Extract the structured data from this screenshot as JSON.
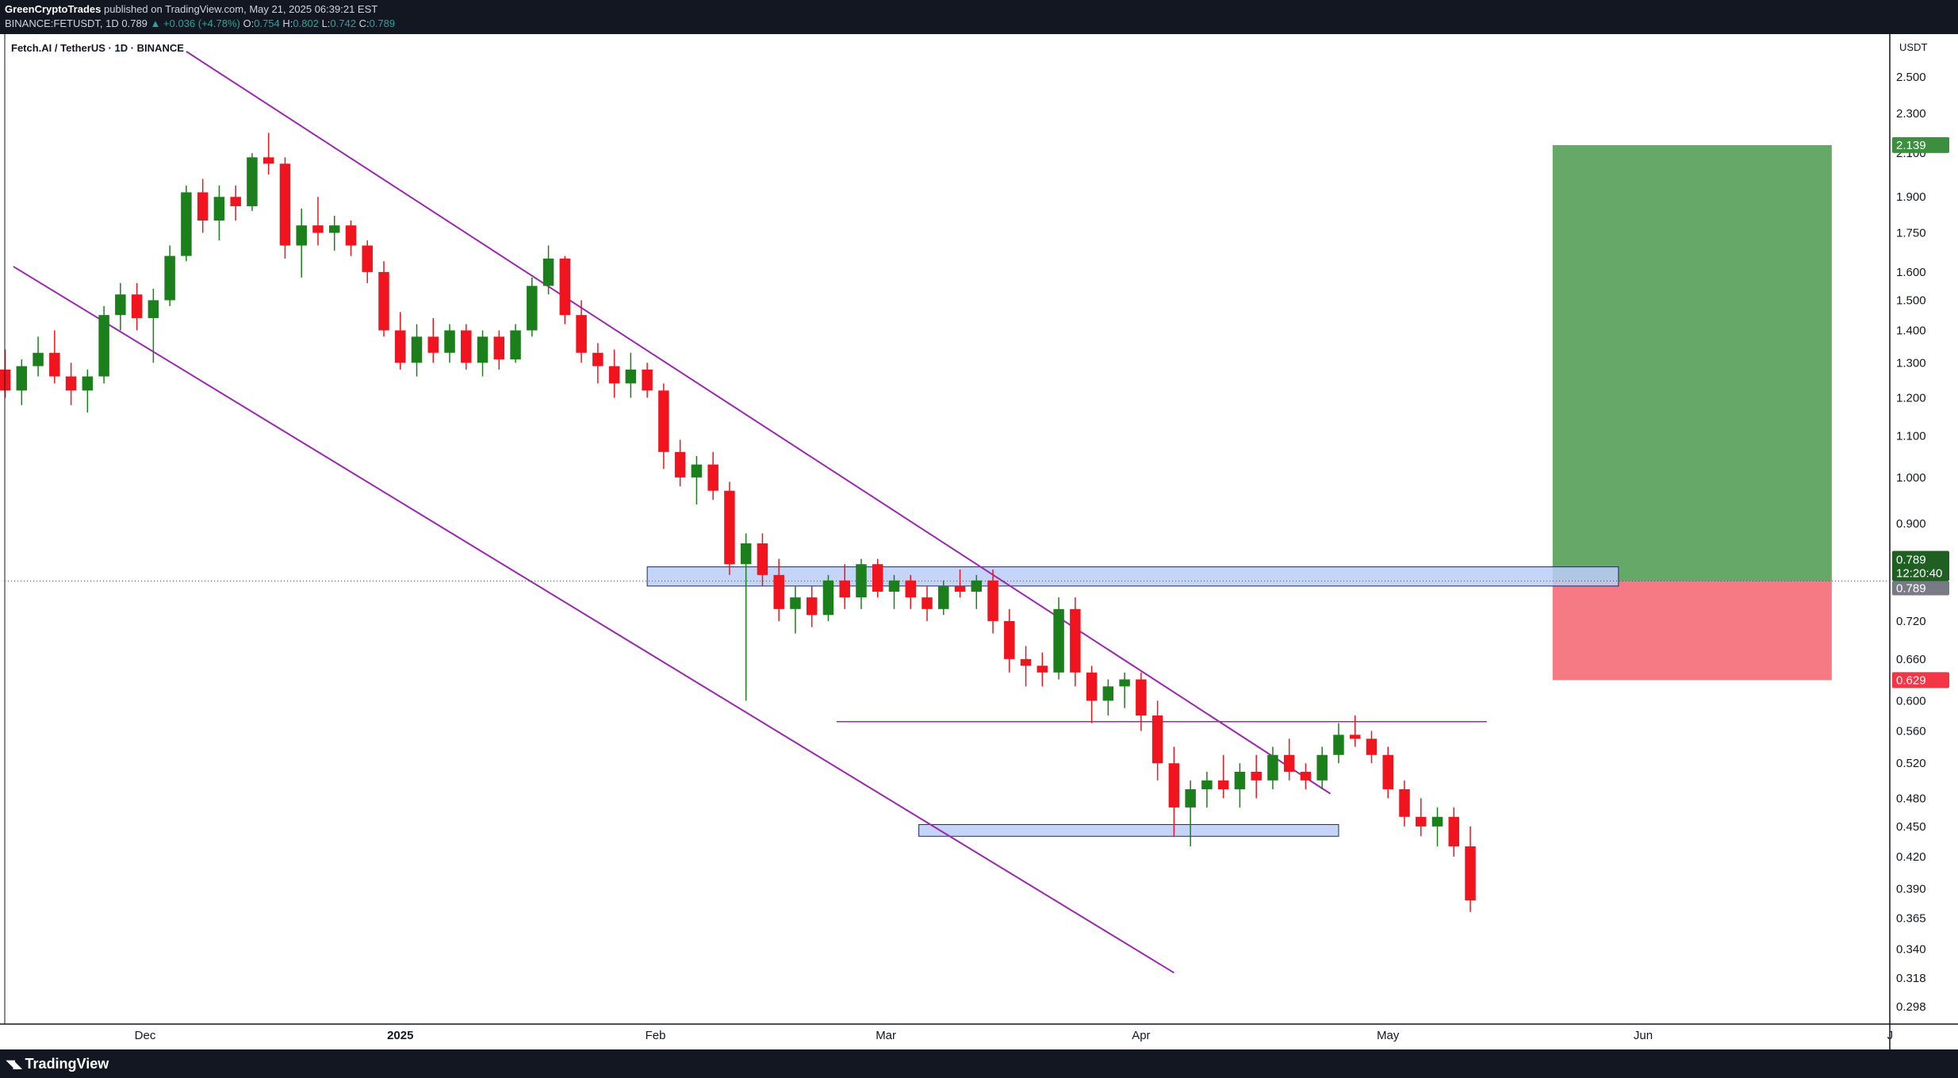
{
  "header": {
    "author": "GreenCryptoTrades",
    "published_text": "published on TradingView.com, May 21, 2025 06:39:21 EST",
    "symbol_line_prefix": "BINANCE:FETUSDT, 1D",
    "last": "0.789",
    "change": "▲ +0.036 (+4.78%)",
    "o_label": "O:",
    "o_value": "0.754",
    "h_label": "H:",
    "h_value": "0.802",
    "l_label": "L:",
    "l_value": "0.742",
    "c_label": "C:",
    "c_value": "0.789"
  },
  "chart_title": "Fetch.AI / TetherUS · 1D · BINANCE",
  "footer": {
    "brand": "TradingView",
    "logo_icon": "tradingview-logo-icon"
  },
  "colors": {
    "up": "#26a69a",
    "candle_up": "#1b7f1b",
    "candle_down": "#f0141e",
    "channel": "#9c27b0",
    "zone_fill": "#bbcdf8",
    "zone_stroke": "#1e2a5e",
    "target_fill": "#66a868",
    "stop_fill": "#f57a84",
    "last_price_bg": "#1f5f22"
  },
  "chart_data": {
    "type": "candlestick",
    "scale": "log",
    "currency_label": "USDT",
    "x_axis_labels": [
      {
        "label": "Dec",
        "date": "2024-12-01"
      },
      {
        "label": "2025",
        "date": "2025-01-01"
      },
      {
        "label": "Feb",
        "date": "2025-02-01"
      },
      {
        "label": "Mar",
        "date": "2025-03-01"
      },
      {
        "label": "Apr",
        "date": "2025-04-01"
      },
      {
        "label": "May",
        "date": "2025-05-01"
      },
      {
        "label": "Jun",
        "date": "2025-06-01"
      },
      {
        "label": "J",
        "date": "2025-07-01"
      }
    ],
    "y_ticks": [
      "2.500",
      "2.300",
      "2.100",
      "1.900",
      "1.750",
      "1.600",
      "1.500",
      "1.400",
      "1.300",
      "1.200",
      "1.100",
      "1.000",
      "0.900",
      "0.720",
      "0.660",
      "0.600",
      "0.560",
      "0.520",
      "0.480",
      "0.450",
      "0.420",
      "0.390",
      "0.365",
      "0.340",
      "0.318",
      "0.298"
    ],
    "price_labels": {
      "target": "2.139",
      "last": "0.789",
      "countdown": "12:20:40",
      "last_secondary": "0.789",
      "stop": "0.629"
    },
    "position": {
      "entry": 0.789,
      "target": 2.139,
      "stop": 0.629,
      "start_date": "2025-05-21"
    },
    "zones": [
      {
        "from_date": "2025-01-31",
        "to_date": "2025-05-29",
        "low": 0.78,
        "high": 0.815
      },
      {
        "from_date": "2025-03-05",
        "to_date": "2025-04-25",
        "low": 0.44,
        "high": 0.452
      }
    ],
    "hline": {
      "from_date": "2025-02-23",
      "to_date": "2025-05-13",
      "price": 0.572
    },
    "channel_lines": [
      {
        "p1": {
          "date": "2024-12-06",
          "price": 2.65
        },
        "p2": {
          "date": "2025-04-24",
          "price": 0.485
        }
      },
      {
        "p1": {
          "date": "2024-11-15",
          "price": 1.62
        },
        "p2": {
          "date": "2025-04-05",
          "price": 0.322
        }
      }
    ],
    "candles": [
      {
        "d": "2024-11-12",
        "o": 1.2,
        "h": 1.3,
        "l": 1.18,
        "c": 1.28
      },
      {
        "d": "2024-11-14",
        "o": 1.28,
        "h": 1.34,
        "l": 1.2,
        "c": 1.22
      },
      {
        "d": "2024-11-16",
        "o": 1.22,
        "h": 1.31,
        "l": 1.18,
        "c": 1.29
      },
      {
        "d": "2024-11-18",
        "o": 1.29,
        "h": 1.38,
        "l": 1.26,
        "c": 1.33
      },
      {
        "d": "2024-11-20",
        "o": 1.33,
        "h": 1.4,
        "l": 1.24,
        "c": 1.26
      },
      {
        "d": "2024-11-22",
        "o": 1.26,
        "h": 1.3,
        "l": 1.18,
        "c": 1.22
      },
      {
        "d": "2024-11-24",
        "o": 1.22,
        "h": 1.28,
        "l": 1.16,
        "c": 1.26
      },
      {
        "d": "2024-11-26",
        "o": 1.26,
        "h": 1.48,
        "l": 1.24,
        "c": 1.45
      },
      {
        "d": "2024-11-28",
        "o": 1.45,
        "h": 1.56,
        "l": 1.4,
        "c": 1.52
      },
      {
        "d": "2024-11-30",
        "o": 1.52,
        "h": 1.56,
        "l": 1.4,
        "c": 1.44
      },
      {
        "d": "2024-12-02",
        "o": 1.44,
        "h": 1.54,
        "l": 1.3,
        "c": 1.5
      },
      {
        "d": "2024-12-04",
        "o": 1.5,
        "h": 1.7,
        "l": 1.48,
        "c": 1.66
      },
      {
        "d": "2024-12-06",
        "o": 1.66,
        "h": 1.95,
        "l": 1.64,
        "c": 1.92
      },
      {
        "d": "2024-12-08",
        "o": 1.92,
        "h": 1.98,
        "l": 1.75,
        "c": 1.8
      },
      {
        "d": "2024-12-10",
        "o": 1.8,
        "h": 1.95,
        "l": 1.72,
        "c": 1.9
      },
      {
        "d": "2024-12-12",
        "o": 1.9,
        "h": 1.95,
        "l": 1.8,
        "c": 1.86
      },
      {
        "d": "2024-12-14",
        "o": 1.86,
        "h": 2.1,
        "l": 1.84,
        "c": 2.08
      },
      {
        "d": "2024-12-16",
        "o": 2.08,
        "h": 2.2,
        "l": 2.0,
        "c": 2.05
      },
      {
        "d": "2024-12-18",
        "o": 2.05,
        "h": 2.08,
        "l": 1.65,
        "c": 1.7
      },
      {
        "d": "2024-12-20",
        "o": 1.7,
        "h": 1.85,
        "l": 1.58,
        "c": 1.78
      },
      {
        "d": "2024-12-22",
        "o": 1.78,
        "h": 1.9,
        "l": 1.7,
        "c": 1.75
      },
      {
        "d": "2024-12-24",
        "o": 1.75,
        "h": 1.82,
        "l": 1.68,
        "c": 1.78
      },
      {
        "d": "2024-12-26",
        "o": 1.78,
        "h": 1.8,
        "l": 1.66,
        "c": 1.7
      },
      {
        "d": "2024-12-28",
        "o": 1.7,
        "h": 1.72,
        "l": 1.56,
        "c": 1.6
      },
      {
        "d": "2024-12-30",
        "o": 1.6,
        "h": 1.64,
        "l": 1.38,
        "c": 1.4
      },
      {
        "d": "2025-01-01",
        "o": 1.4,
        "h": 1.46,
        "l": 1.28,
        "c": 1.3
      },
      {
        "d": "2025-01-03",
        "o": 1.3,
        "h": 1.42,
        "l": 1.26,
        "c": 1.38
      },
      {
        "d": "2025-01-05",
        "o": 1.38,
        "h": 1.44,
        "l": 1.3,
        "c": 1.33
      },
      {
        "d": "2025-01-07",
        "o": 1.33,
        "h": 1.42,
        "l": 1.3,
        "c": 1.4
      },
      {
        "d": "2025-01-09",
        "o": 1.4,
        "h": 1.42,
        "l": 1.28,
        "c": 1.3
      },
      {
        "d": "2025-01-11",
        "o": 1.3,
        "h": 1.4,
        "l": 1.26,
        "c": 1.38
      },
      {
        "d": "2025-01-13",
        "o": 1.38,
        "h": 1.4,
        "l": 1.28,
        "c": 1.31
      },
      {
        "d": "2025-01-15",
        "o": 1.31,
        "h": 1.42,
        "l": 1.3,
        "c": 1.4
      },
      {
        "d": "2025-01-17",
        "o": 1.4,
        "h": 1.58,
        "l": 1.38,
        "c": 1.55
      },
      {
        "d": "2025-01-19",
        "o": 1.55,
        "h": 1.7,
        "l": 1.52,
        "c": 1.65
      },
      {
        "d": "2025-01-21",
        "o": 1.65,
        "h": 1.66,
        "l": 1.42,
        "c": 1.45
      },
      {
        "d": "2025-01-23",
        "o": 1.45,
        "h": 1.5,
        "l": 1.3,
        "c": 1.33
      },
      {
        "d": "2025-01-25",
        "o": 1.33,
        "h": 1.36,
        "l": 1.24,
        "c": 1.29
      },
      {
        "d": "2025-01-27",
        "o": 1.29,
        "h": 1.34,
        "l": 1.2,
        "c": 1.24
      },
      {
        "d": "2025-01-29",
        "o": 1.24,
        "h": 1.33,
        "l": 1.2,
        "c": 1.28
      },
      {
        "d": "2025-01-31",
        "o": 1.28,
        "h": 1.3,
        "l": 1.2,
        "c": 1.22
      },
      {
        "d": "2025-02-02",
        "o": 1.22,
        "h": 1.24,
        "l": 1.02,
        "c": 1.06
      },
      {
        "d": "2025-02-04",
        "o": 1.06,
        "h": 1.09,
        "l": 0.98,
        "c": 1.0
      },
      {
        "d": "2025-02-06",
        "o": 1.0,
        "h": 1.05,
        "l": 0.94,
        "c": 1.03
      },
      {
        "d": "2025-02-08",
        "o": 1.03,
        "h": 1.06,
        "l": 0.95,
        "c": 0.97
      },
      {
        "d": "2025-02-10",
        "o": 0.97,
        "h": 0.99,
        "l": 0.8,
        "c": 0.82
      },
      {
        "d": "2025-02-12",
        "o": 0.82,
        "h": 0.88,
        "l": 0.6,
        "c": 0.86
      },
      {
        "d": "2025-02-14",
        "o": 0.86,
        "h": 0.88,
        "l": 0.78,
        "c": 0.8
      },
      {
        "d": "2025-02-16",
        "o": 0.8,
        "h": 0.83,
        "l": 0.72,
        "c": 0.74
      },
      {
        "d": "2025-02-18",
        "o": 0.74,
        "h": 0.78,
        "l": 0.7,
        "c": 0.76
      },
      {
        "d": "2025-02-20",
        "o": 0.76,
        "h": 0.78,
        "l": 0.71,
        "c": 0.73
      },
      {
        "d": "2025-02-22",
        "o": 0.73,
        "h": 0.8,
        "l": 0.72,
        "c": 0.79
      },
      {
        "d": "2025-02-24",
        "o": 0.79,
        "h": 0.82,
        "l": 0.74,
        "c": 0.76
      },
      {
        "d": "2025-02-26",
        "o": 0.76,
        "h": 0.83,
        "l": 0.74,
        "c": 0.82
      },
      {
        "d": "2025-02-28",
        "o": 0.82,
        "h": 0.83,
        "l": 0.76,
        "c": 0.77
      },
      {
        "d": "2025-03-02",
        "o": 0.77,
        "h": 0.8,
        "l": 0.74,
        "c": 0.79
      },
      {
        "d": "2025-03-04",
        "o": 0.79,
        "h": 0.8,
        "l": 0.74,
        "c": 0.76
      },
      {
        "d": "2025-03-06",
        "o": 0.76,
        "h": 0.78,
        "l": 0.72,
        "c": 0.74
      },
      {
        "d": "2025-03-08",
        "o": 0.74,
        "h": 0.79,
        "l": 0.73,
        "c": 0.78
      },
      {
        "d": "2025-03-10",
        "o": 0.78,
        "h": 0.81,
        "l": 0.76,
        "c": 0.77
      },
      {
        "d": "2025-03-12",
        "o": 0.77,
        "h": 0.8,
        "l": 0.74,
        "c": 0.79
      },
      {
        "d": "2025-03-14",
        "o": 0.79,
        "h": 0.81,
        "l": 0.7,
        "c": 0.72
      },
      {
        "d": "2025-03-16",
        "o": 0.72,
        "h": 0.74,
        "l": 0.64,
        "c": 0.66
      },
      {
        "d": "2025-03-18",
        "o": 0.66,
        "h": 0.68,
        "l": 0.62,
        "c": 0.65
      },
      {
        "d": "2025-03-20",
        "o": 0.65,
        "h": 0.67,
        "l": 0.62,
        "c": 0.64
      },
      {
        "d": "2025-03-22",
        "o": 0.64,
        "h": 0.76,
        "l": 0.63,
        "c": 0.74
      },
      {
        "d": "2025-03-24",
        "o": 0.74,
        "h": 0.76,
        "l": 0.62,
        "c": 0.64
      },
      {
        "d": "2025-03-26",
        "o": 0.64,
        "h": 0.65,
        "l": 0.57,
        "c": 0.6
      },
      {
        "d": "2025-03-28",
        "o": 0.6,
        "h": 0.63,
        "l": 0.58,
        "c": 0.62
      },
      {
        "d": "2025-03-30",
        "o": 0.62,
        "h": 0.64,
        "l": 0.59,
        "c": 0.63
      },
      {
        "d": "2025-04-01",
        "o": 0.63,
        "h": 0.64,
        "l": 0.56,
        "c": 0.58
      },
      {
        "d": "2025-04-03",
        "o": 0.58,
        "h": 0.6,
        "l": 0.5,
        "c": 0.52
      },
      {
        "d": "2025-04-05",
        "o": 0.52,
        "h": 0.54,
        "l": 0.44,
        "c": 0.47
      },
      {
        "d": "2025-04-07",
        "o": 0.47,
        "h": 0.5,
        "l": 0.43,
        "c": 0.49
      },
      {
        "d": "2025-04-09",
        "o": 0.49,
        "h": 0.51,
        "l": 0.47,
        "c": 0.5
      },
      {
        "d": "2025-04-11",
        "o": 0.5,
        "h": 0.53,
        "l": 0.48,
        "c": 0.49
      },
      {
        "d": "2025-04-13",
        "o": 0.49,
        "h": 0.52,
        "l": 0.47,
        "c": 0.51
      },
      {
        "d": "2025-04-15",
        "o": 0.51,
        "h": 0.53,
        "l": 0.48,
        "c": 0.5
      },
      {
        "d": "2025-04-17",
        "o": 0.5,
        "h": 0.54,
        "l": 0.49,
        "c": 0.53
      },
      {
        "d": "2025-04-19",
        "o": 0.53,
        "h": 0.55,
        "l": 0.5,
        "c": 0.51
      },
      {
        "d": "2025-04-21",
        "o": 0.51,
        "h": 0.52,
        "l": 0.49,
        "c": 0.5
      },
      {
        "d": "2025-04-23",
        "o": 0.5,
        "h": 0.54,
        "l": 0.49,
        "c": 0.53
      },
      {
        "d": "2025-04-25",
        "o": 0.53,
        "h": 0.57,
        "l": 0.52,
        "c": 0.555
      },
      {
        "d": "2025-04-27",
        "o": 0.555,
        "h": 0.58,
        "l": 0.54,
        "c": 0.55
      },
      {
        "d": "2025-04-29",
        "o": 0.55,
        "h": 0.56,
        "l": 0.52,
        "c": 0.53
      },
      {
        "d": "2025-05-01",
        "o": 0.53,
        "h": 0.54,
        "l": 0.48,
        "c": 0.49
      },
      {
        "d": "2025-05-03",
        "o": 0.49,
        "h": 0.5,
        "l": 0.45,
        "c": 0.46
      },
      {
        "d": "2025-05-05",
        "o": 0.46,
        "h": 0.48,
        "l": 0.44,
        "c": 0.45
      },
      {
        "d": "2025-05-07",
        "o": 0.45,
        "h": 0.47,
        "l": 0.43,
        "c": 0.46
      },
      {
        "d": "2025-05-09",
        "o": 0.46,
        "h": 0.47,
        "l": 0.42,
        "c": 0.43
      },
      {
        "d": "2025-05-11",
        "o": 0.43,
        "h": 0.45,
        "l": 0.37,
        "c": 0.38
      }
    ]
  }
}
